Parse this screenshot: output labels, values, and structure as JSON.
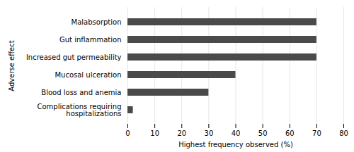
{
  "chart_data": {
    "type": "bar",
    "orientation": "horizontal",
    "categories": [
      "Complications requiring\nhospitalizations",
      "Blood loss and anemia",
      "Mucosal ulceration",
      "Increased gut permeability",
      "Gut inflammation",
      "Malabsorption"
    ],
    "values": [
      2,
      30,
      40,
      70,
      70,
      70
    ],
    "color": "#4a4a4a",
    "xlim": [
      0,
      80
    ],
    "xticks": [
      0,
      10,
      20,
      30,
      40,
      50,
      60,
      70,
      80
    ],
    "xlabel": "Highest frequency observed (%)",
    "ylabel": "Adverse effect",
    "grid": true
  }
}
